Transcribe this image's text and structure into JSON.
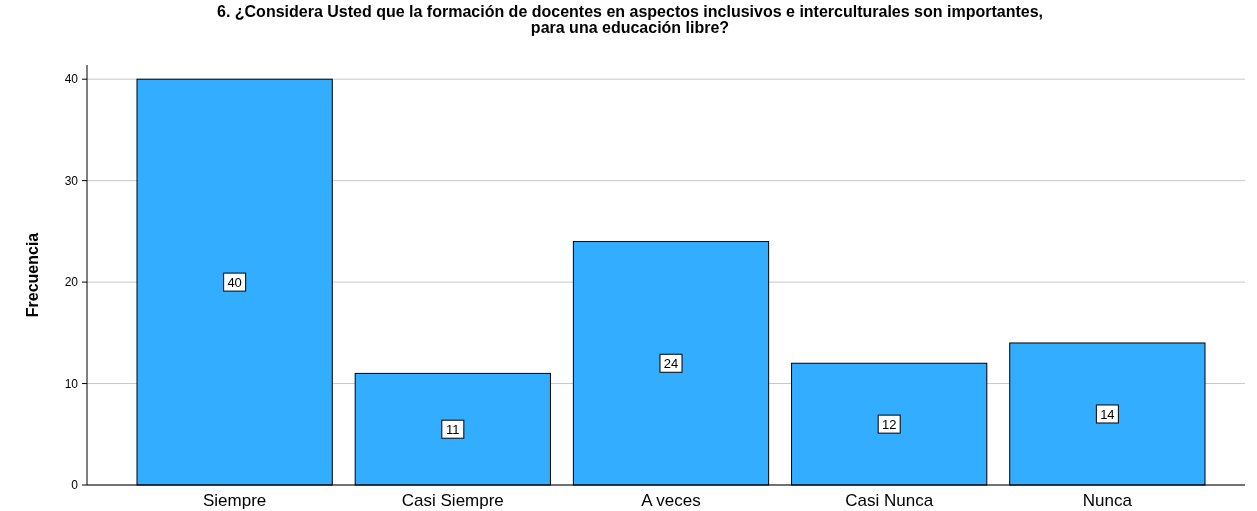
{
  "chart_data": {
    "type": "bar",
    "title": "6. ¿Considera Usted que la formación de docentes en aspectos inclusivos e interculturales son importantes,\npara una educación libre?",
    "ylabel": "Frecuencia",
    "categories": [
      "Siempre",
      "Casi Siempre",
      "A veces",
      "Casi Nunca",
      "Nunca"
    ],
    "values": [
      40,
      11,
      24,
      12,
      14
    ],
    "color": "#33adff",
    "ylim": [
      0,
      41.4
    ],
    "yticks": [
      0,
      10,
      20,
      30,
      40
    ],
    "grid": "y",
    "data_labels": true
  }
}
